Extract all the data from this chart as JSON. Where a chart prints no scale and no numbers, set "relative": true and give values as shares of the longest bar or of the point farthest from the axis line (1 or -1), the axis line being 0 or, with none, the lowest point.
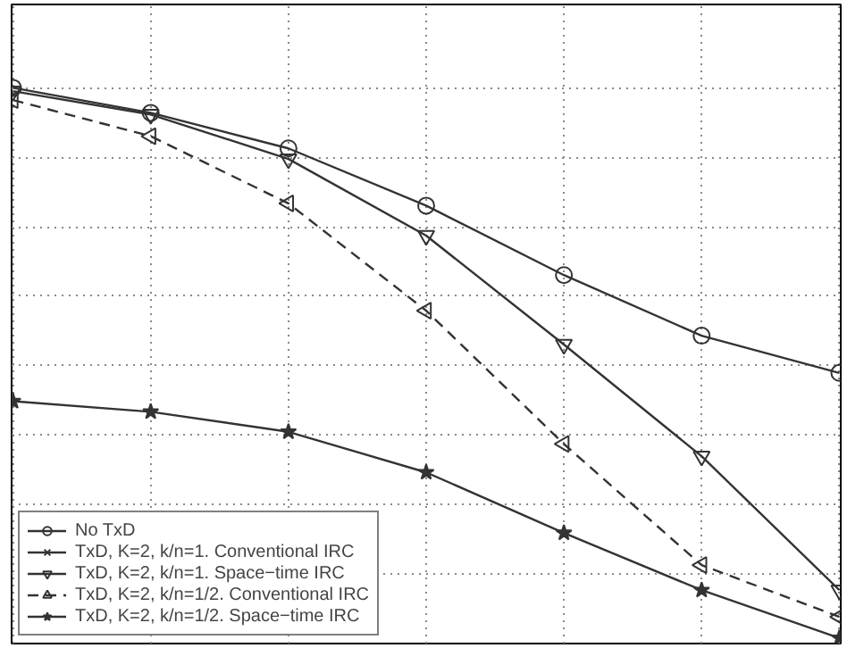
{
  "chart_data": {
    "type": "line",
    "relative": true,
    "categories": [
      null,
      null,
      null,
      null,
      null,
      null,
      null
    ],
    "grid": true,
    "legend": "bottom left",
    "series": [
      {
        "name": "No TxD",
        "color": "#333333",
        "marker": "circle",
        "line_style": "solid",
        "values": [
          1,
          0.955,
          0.891,
          0.788,
          0.663,
          0.554,
          0.487
        ]
      },
      {
        "name": "TxD, K=2, k/n=1. Conventional IRC",
        "color": "#333333",
        "marker": "cross",
        "line_style": "solid",
        "values": [
          null,
          null,
          null,
          null,
          null,
          null,
          null
        ]
      },
      {
        "name": "TxD, K=2, k/n=1. Space−time IRC",
        "color": "#333333",
        "marker": "triangle",
        "line_style": "solid",
        "values": [
          0.994,
          0.952,
          0.872,
          0.734,
          0.538,
          0.337,
          0.096
        ]
      },
      {
        "name": "TxD, K=2, k/n=1/2. Conventional IRC",
        "color": "#333333",
        "marker": "triangle",
        "line_style": "dashed",
        "values": [
          0.978,
          0.913,
          0.792,
          0.599,
          0.359,
          0.141,
          0.048
        ]
      },
      {
        "name": "TxD, K=2, k/n=1/2. Space−time IRC",
        "color": "#333333",
        "marker": "star",
        "line_style": "solid",
        "values": [
          0.436,
          0.417,
          0.381,
          0.308,
          0.199,
          0.096,
          0.01
        ]
      }
    ]
  }
}
